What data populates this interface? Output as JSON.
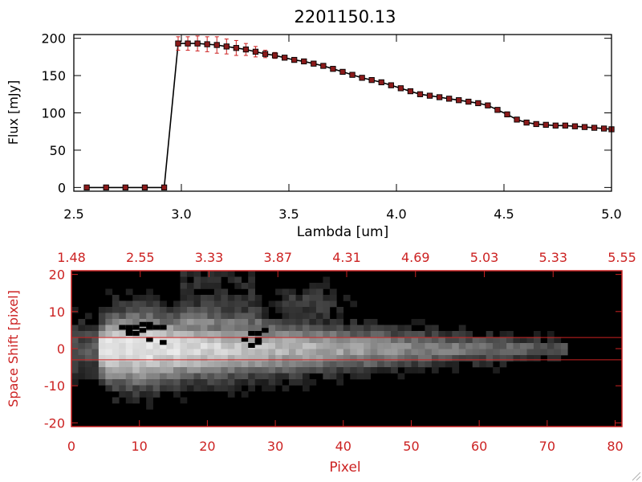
{
  "chart_data": [
    {
      "type": "line",
      "title": "2201150.13",
      "xlabel": "Lambda [um]",
      "ylabel": "Flux [mJy]",
      "xlim": [
        2.5,
        5.0
      ],
      "ylim": [
        -5,
        205
      ],
      "x_ticks": [
        "2.5",
        "3.0",
        "3.5",
        "4.0",
        "4.5",
        "5.0"
      ],
      "y_ticks": [
        "0",
        "50",
        "100",
        "150",
        "200"
      ],
      "colors": {
        "line": "#000000",
        "marker": "#8b1a1a",
        "error": "#cc1f1f"
      },
      "series": [
        {
          "x": [
            2.56,
            2.65,
            2.74,
            2.83,
            2.92,
            2.985,
            3.03,
            3.075,
            3.12,
            3.165,
            3.21,
            3.255,
            3.3,
            3.345,
            3.39,
            3.435,
            3.48,
            3.525,
            3.57,
            3.615,
            3.66,
            3.705,
            3.75,
            3.795,
            3.84,
            3.885,
            3.93,
            3.975,
            4.02,
            4.065,
            4.11,
            4.155,
            4.2,
            4.245,
            4.29,
            4.335,
            4.38,
            4.425,
            4.47,
            4.515,
            4.56,
            4.605,
            4.65,
            4.695,
            4.74,
            4.785,
            4.83,
            4.875,
            4.92,
            4.965,
            5.0
          ],
          "y": [
            0,
            0,
            0,
            0,
            0,
            193,
            193,
            193,
            192,
            191,
            189,
            187,
            185,
            182,
            179,
            177,
            174,
            171,
            169,
            166,
            163,
            159,
            155,
            151,
            147,
            144,
            141,
            137,
            133,
            129,
            125,
            123,
            121,
            119,
            117,
            115,
            113,
            110,
            104,
            98,
            91,
            87,
            85,
            84,
            83,
            83,
            82,
            81,
            80,
            79,
            78
          ],
          "yerr": [
            0,
            0,
            0,
            0,
            0,
            9,
            9,
            10,
            10,
            11,
            10,
            10,
            8,
            7,
            5,
            4,
            3,
            3,
            3,
            3,
            3,
            3,
            3,
            3,
            3,
            3,
            3,
            3,
            3,
            3,
            3,
            3,
            3,
            3,
            3,
            3,
            3,
            3,
            3,
            3,
            3,
            3,
            3,
            3,
            3,
            3,
            3,
            3,
            3,
            3,
            3
          ]
        }
      ]
    },
    {
      "type": "heatmap",
      "xlabel": "Pixel",
      "ylabel": "Space Shift [pixel]",
      "xlim": [
        0,
        81
      ],
      "ylim": [
        -21,
        21
      ],
      "x_ticks": [
        "0",
        "10",
        "20",
        "30",
        "40",
        "50",
        "60",
        "70",
        "80"
      ],
      "y_ticks": [
        "-20",
        "-10",
        "0",
        "10",
        "20"
      ],
      "top_ticks": [
        "1.48",
        "2.55",
        "3.33",
        "3.87",
        "4.31",
        "4.69",
        "5.03",
        "5.33",
        "5.55"
      ],
      "extraction_window": [
        -3,
        3
      ],
      "colors": {
        "axis": "#cc2222",
        "window": "#cc2222"
      }
    }
  ]
}
